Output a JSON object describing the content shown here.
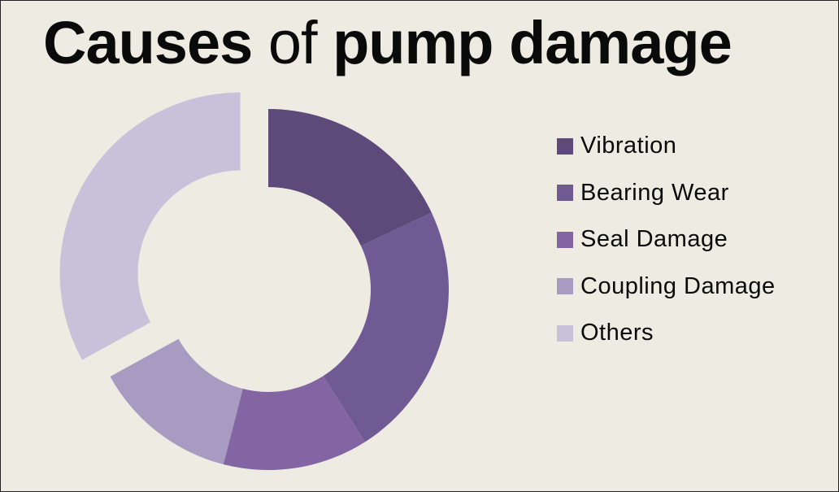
{
  "title": {
    "part1": "Causes",
    "part2": " of ",
    "part3": "pump damage"
  },
  "chart_data": {
    "type": "pie",
    "variant": "doughnut",
    "title": "Causes of pump damage",
    "categories": [
      "Vibration",
      "Bearing Wear",
      "Seal Damage",
      "Coupling Damage",
      "Others"
    ],
    "values": [
      18,
      23,
      13,
      13,
      33
    ],
    "colors": [
      "#5e4a7a",
      "#705a93",
      "#8365a4",
      "#a79bc2",
      "#c9c1da"
    ],
    "exploded": [
      "Others"
    ],
    "legend": "right",
    "data_labels": false
  },
  "background_color": "#eeece2"
}
